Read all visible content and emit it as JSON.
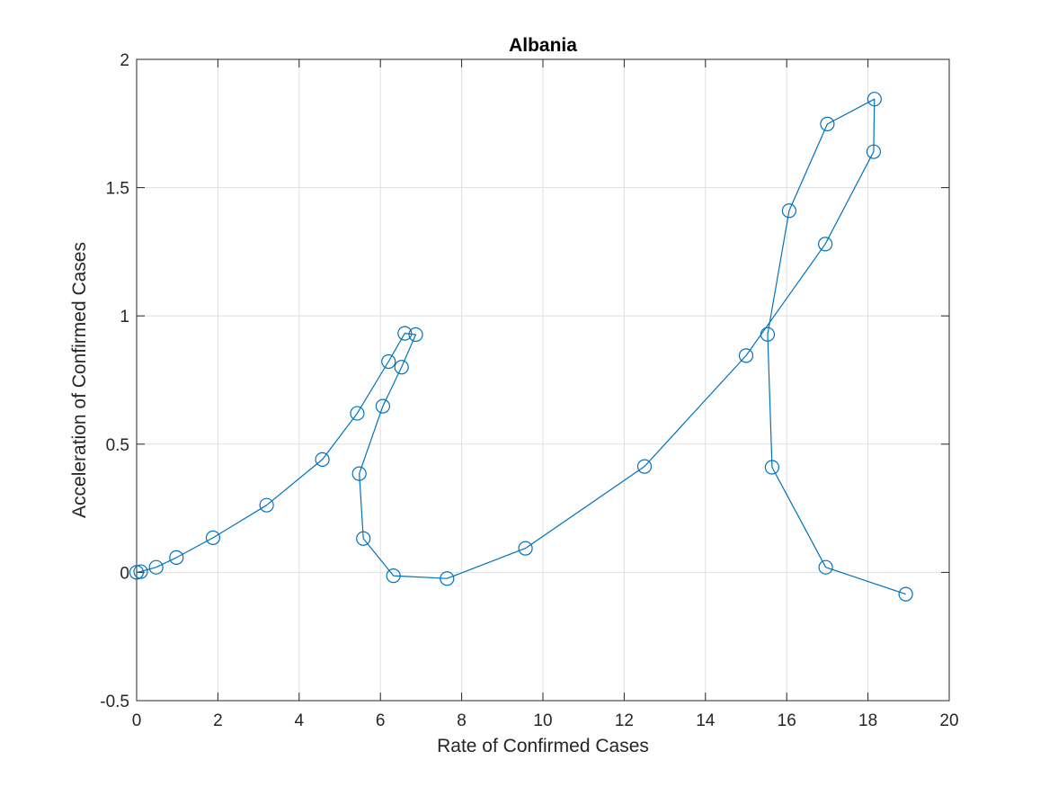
{
  "chart_data": {
    "type": "line",
    "title": "Albania",
    "xlabel": "Rate of Confirmed Cases",
    "ylabel": "Acceleration of Confirmed Cases",
    "xlim": [
      0,
      20
    ],
    "ylim": [
      -0.5,
      2
    ],
    "xticks": [
      "0",
      "2",
      "4",
      "6",
      "8",
      "10",
      "12",
      "14",
      "16",
      "18",
      "20"
    ],
    "yticks": [
      "-0.5",
      "0",
      "0.5",
      "1",
      "1.5",
      "2"
    ],
    "xtick_values": [
      0,
      2,
      4,
      6,
      8,
      10,
      12,
      14,
      16,
      18,
      20
    ],
    "ytick_values": [
      -0.5,
      0,
      0.5,
      1,
      1.5,
      2
    ],
    "grid": true,
    "marker": "circle",
    "line_color": "#0072BD",
    "series": [
      {
        "x": [
          0.0,
          0.1,
          0.48,
          0.98,
          1.88,
          3.2,
          4.57,
          5.43,
          6.2,
          6.6,
          6.87,
          6.52,
          6.06,
          5.48,
          5.58,
          6.32,
          7.64,
          9.57,
          12.5,
          15.0,
          16.95,
          18.14,
          18.16,
          17.0,
          16.06,
          15.53,
          15.64,
          16.96,
          18.93
        ],
        "y": [
          0.0,
          0.003,
          0.02,
          0.058,
          0.135,
          0.262,
          0.44,
          0.62,
          0.822,
          0.932,
          0.927,
          0.8,
          0.648,
          0.385,
          0.132,
          -0.013,
          -0.024,
          0.094,
          0.413,
          0.845,
          1.28,
          1.64,
          1.845,
          1.748,
          1.41,
          0.928,
          0.41,
          0.02,
          -0.085
        ]
      }
    ]
  }
}
